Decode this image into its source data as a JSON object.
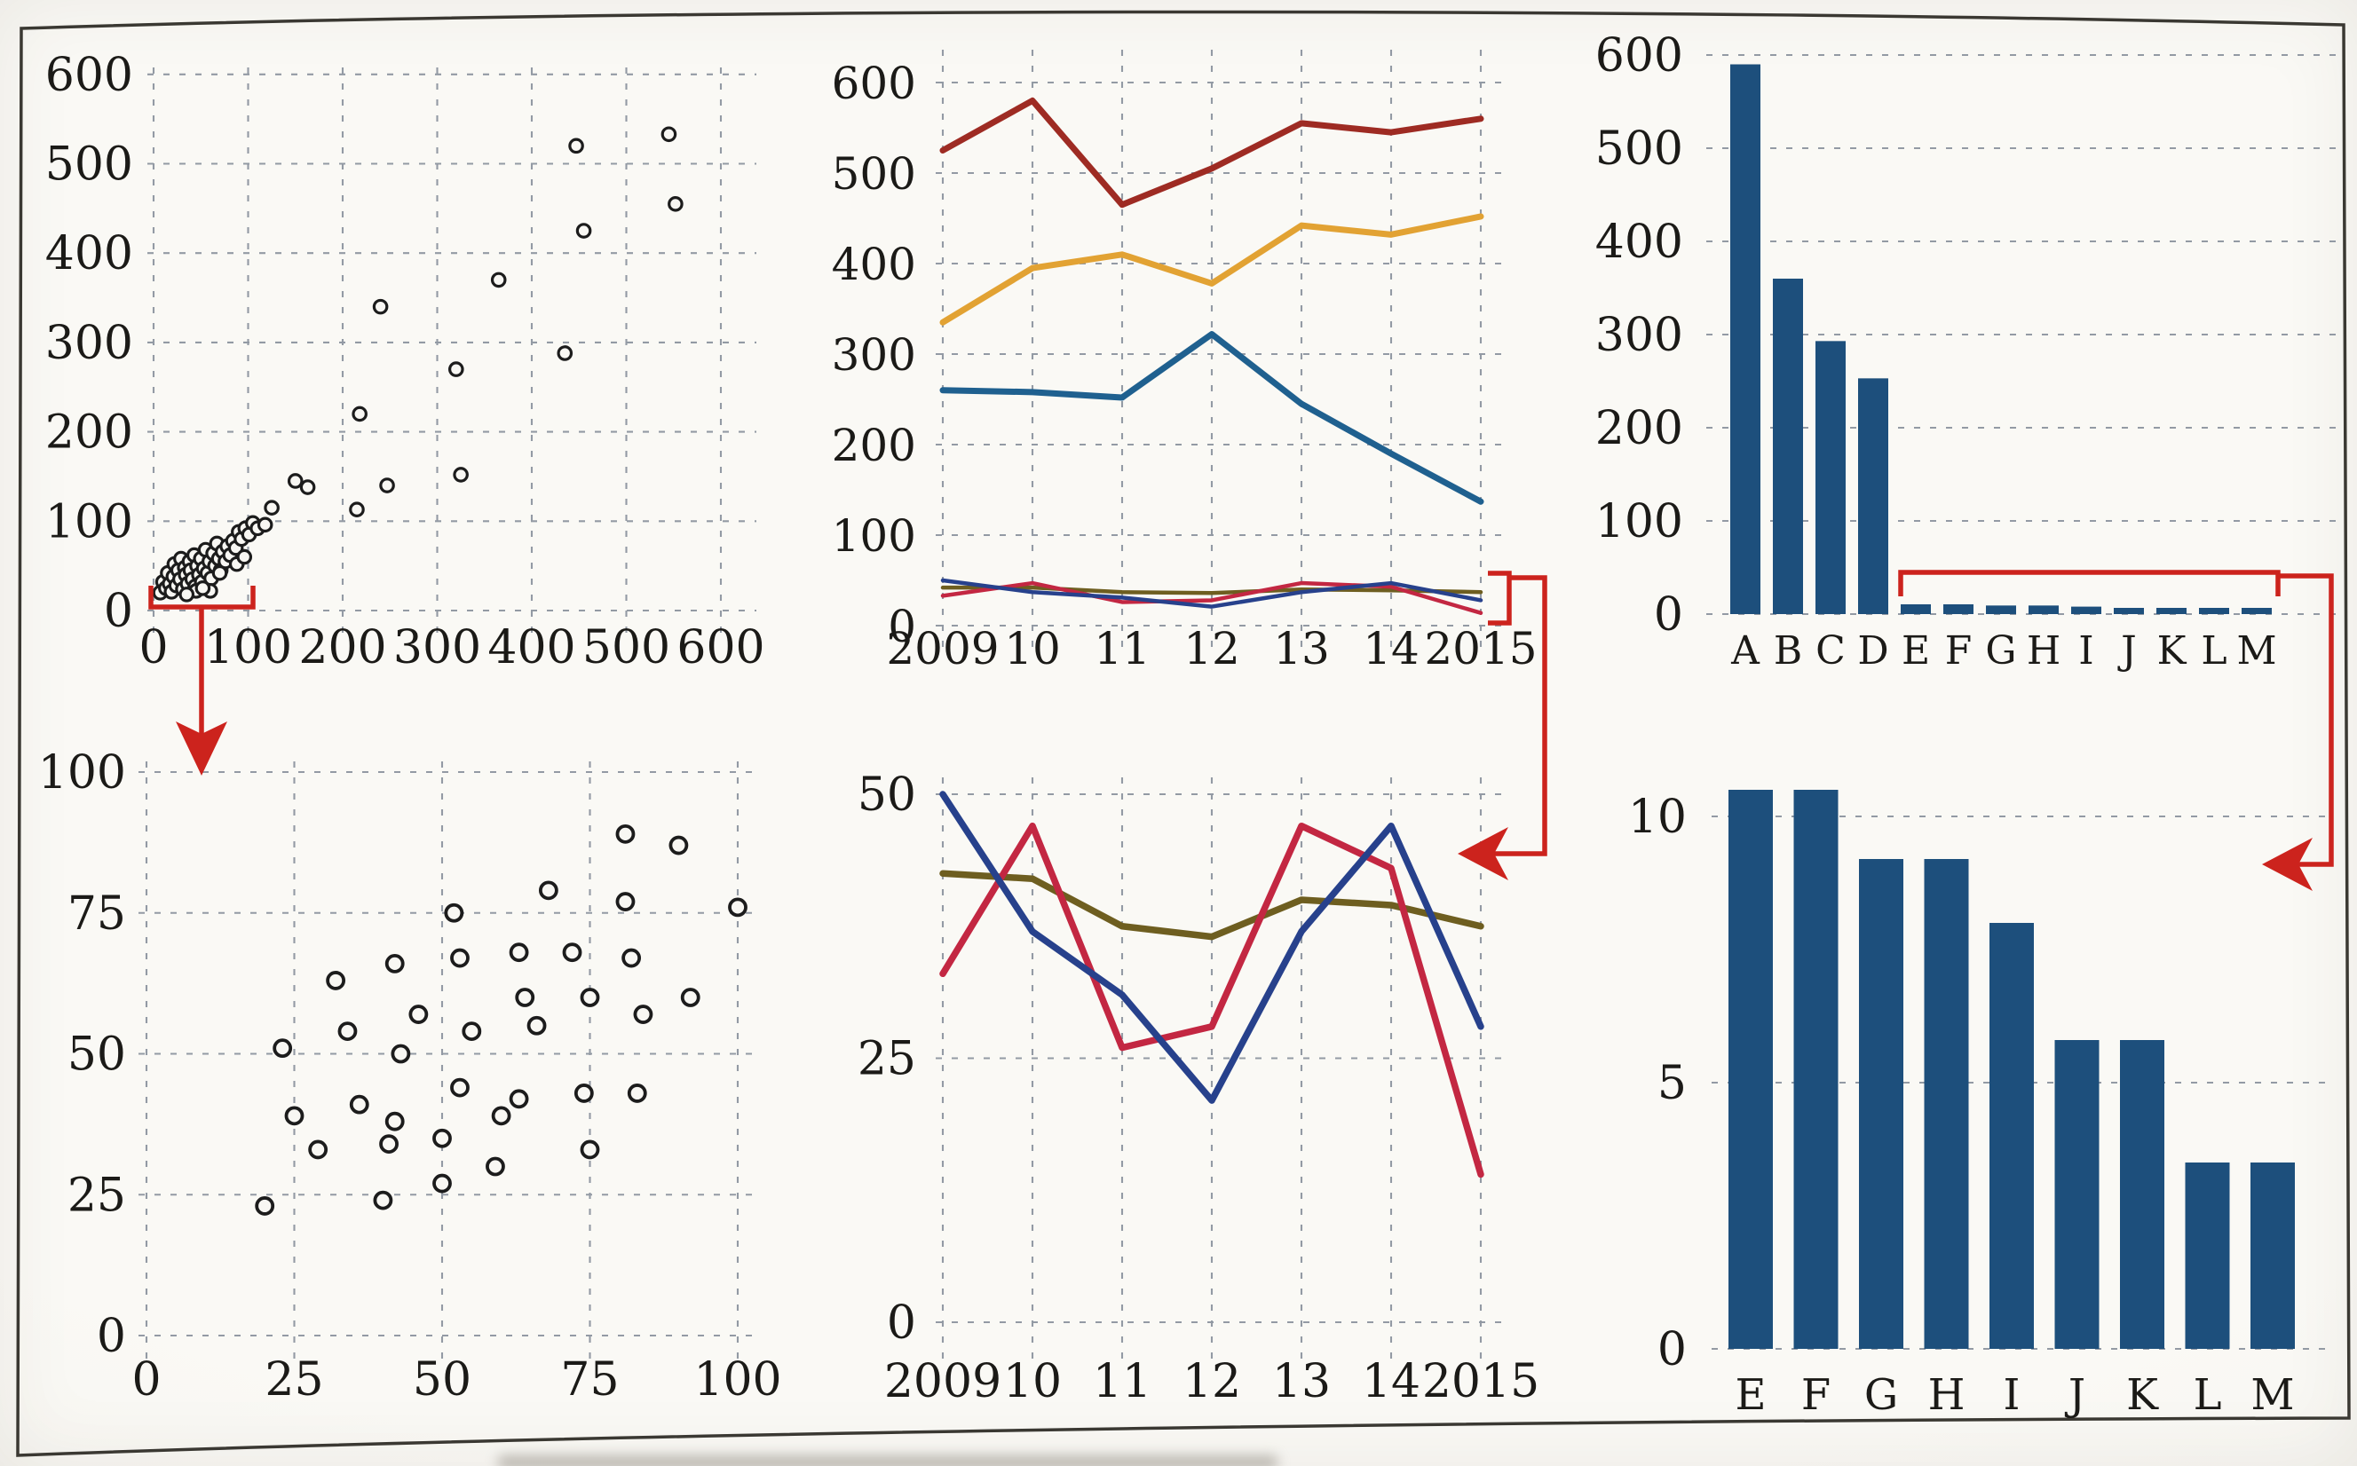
{
  "page": {
    "paper_color": "#f8f7f3",
    "border_color": "#3a3832",
    "gridline_color": "#939aa4",
    "text_color": "#1b1a17",
    "annotation_color": "#cc231d",
    "bar_color": "#1d4f7c",
    "point_color": "#1c1c1c"
  },
  "chart_data": [
    {
      "id": "scatter-full",
      "type": "scatter",
      "position": "top-left",
      "xlim": [
        0,
        600
      ],
      "ylim": [
        0,
        600
      ],
      "xticks": [
        0,
        100,
        200,
        300,
        400,
        500,
        600
      ],
      "xtick_labels": [
        "0",
        "100",
        "200",
        "300",
        "400",
        "500",
        "600"
      ],
      "yticks": [
        0,
        100,
        200,
        300,
        400,
        500,
        600
      ],
      "ytick_labels": [
        "0",
        "100",
        "200",
        "300",
        "400",
        "500",
        "600"
      ],
      "grid": "both",
      "points": [
        [
          7,
          20
        ],
        [
          10,
          32
        ],
        [
          13,
          25
        ],
        [
          15,
          42
        ],
        [
          17,
          30
        ],
        [
          19,
          21
        ],
        [
          21,
          38
        ],
        [
          22,
          52
        ],
        [
          24,
          28
        ],
        [
          26,
          45
        ],
        [
          28,
          35
        ],
        [
          29,
          58
        ],
        [
          31,
          24
        ],
        [
          33,
          48
        ],
        [
          34,
          40
        ],
        [
          36,
          30
        ],
        [
          38,
          55
        ],
        [
          39,
          45
        ],
        [
          41,
          35
        ],
        [
          43,
          62
        ],
        [
          44,
          27
        ],
        [
          46,
          50
        ],
        [
          48,
          40
        ],
        [
          50,
          58
        ],
        [
          51,
          32
        ],
        [
          53,
          47
        ],
        [
          55,
          68
        ],
        [
          57,
          42
        ],
        [
          59,
          55
        ],
        [
          61,
          36
        ],
        [
          63,
          64
        ],
        [
          65,
          50
        ],
        [
          67,
          75
        ],
        [
          69,
          58
        ],
        [
          71,
          45
        ],
        [
          73,
          66
        ],
        [
          76,
          55
        ],
        [
          78,
          72
        ],
        [
          81,
          62
        ],
        [
          84,
          78
        ],
        [
          87,
          70
        ],
        [
          90,
          88
        ],
        [
          60,
          22
        ],
        [
          45,
          22
        ],
        [
          35,
          18
        ],
        [
          52,
          25
        ],
        [
          70,
          42
        ],
        [
          88,
          52
        ],
        [
          96,
          60
        ],
        [
          93,
          80
        ],
        [
          97,
          92
        ],
        [
          101,
          85
        ],
        [
          105,
          98
        ],
        [
          110,
          92
        ],
        [
          118,
          96
        ],
        [
          125,
          115
        ],
        [
          150,
          145
        ],
        [
          163,
          138
        ],
        [
          215,
          113
        ],
        [
          218,
          220
        ],
        [
          240,
          340
        ],
        [
          247,
          140
        ],
        [
          320,
          270
        ],
        [
          325,
          152
        ],
        [
          365,
          370
        ],
        [
          435,
          288
        ],
        [
          447,
          520
        ],
        [
          455,
          425
        ],
        [
          545,
          533
        ],
        [
          552,
          455
        ]
      ]
    },
    {
      "id": "scatter-zoom",
      "type": "scatter",
      "position": "bottom-left",
      "xlim": [
        0,
        100
      ],
      "ylim": [
        0,
        100
      ],
      "xticks": [
        0,
        25,
        50,
        75,
        100
      ],
      "xtick_labels": [
        "0",
        "25",
        "50",
        "75",
        "100"
      ],
      "yticks": [
        0,
        25,
        50,
        75,
        100
      ],
      "ytick_labels": [
        "0",
        "25",
        "50",
        "75",
        "100"
      ],
      "grid": "both",
      "points": [
        [
          20,
          23
        ],
        [
          23,
          51
        ],
        [
          25,
          39
        ],
        [
          29,
          33
        ],
        [
          32,
          63
        ],
        [
          34,
          54
        ],
        [
          36,
          41
        ],
        [
          40,
          24
        ],
        [
          41,
          34
        ],
        [
          42,
          38
        ],
        [
          43,
          50
        ],
        [
          42,
          66
        ],
        [
          46,
          57
        ],
        [
          50,
          35
        ],
        [
          50,
          27
        ],
        [
          52,
          75
        ],
        [
          53,
          67
        ],
        [
          53,
          44
        ],
        [
          55,
          54
        ],
        [
          59,
          30
        ],
        [
          60,
          39
        ],
        [
          63,
          68
        ],
        [
          63,
          42
        ],
        [
          64,
          60
        ],
        [
          66,
          55
        ],
        [
          68,
          79
        ],
        [
          72,
          68
        ],
        [
          74,
          43
        ],
        [
          75,
          60
        ],
        [
          75,
          33
        ],
        [
          81,
          89
        ],
        [
          81,
          77
        ],
        [
          82,
          67
        ],
        [
          83,
          43
        ],
        [
          84,
          57
        ],
        [
          90,
          87
        ],
        [
          92,
          60
        ],
        [
          100,
          76
        ]
      ]
    },
    {
      "id": "lines-full",
      "type": "line",
      "position": "top-middle",
      "x_labels": [
        "2009",
        "10",
        "11",
        "12",
        "13",
        "14",
        "2015"
      ],
      "ylim": [
        0,
        600
      ],
      "yticks": [
        0,
        100,
        200,
        300,
        400,
        500,
        600
      ],
      "ytick_labels": [
        "0",
        "100",
        "200",
        "300",
        "400",
        "500",
        "600"
      ],
      "grid": "both",
      "series": [
        {
          "name": "series-dark-red",
          "color": "#9e2b23",
          "values": [
            525,
            580,
            465,
            505,
            555,
            545,
            560
          ]
        },
        {
          "name": "series-orange",
          "color": "#e2a233",
          "values": [
            335,
            395,
            410,
            378,
            442,
            432,
            452
          ]
        },
        {
          "name": "series-steel-blue",
          "color": "#1f608f",
          "values": [
            260,
            258,
            252,
            322,
            245,
            190,
            137
          ]
        },
        {
          "name": "series-olive",
          "color": "#6e5e20",
          "values": [
            42,
            42,
            37,
            36,
            40,
            39,
            37
          ]
        },
        {
          "name": "series-crimson",
          "color": "#c32742",
          "values": [
            33,
            47,
            26,
            28,
            47,
            43,
            14
          ]
        },
        {
          "name": "series-navy",
          "color": "#27418c",
          "values": [
            50,
            37,
            31,
            21,
            37,
            47,
            28
          ]
        }
      ]
    },
    {
      "id": "lines-zoom",
      "type": "line",
      "position": "bottom-middle",
      "x_labels": [
        "2009",
        "10",
        "11",
        "12",
        "13",
        "14",
        "2015"
      ],
      "ylim": [
        0,
        50
      ],
      "yticks": [
        0,
        25,
        50
      ],
      "ytick_labels": [
        "0",
        "25",
        "50"
      ],
      "grid": "both",
      "series": [
        {
          "name": "series-olive",
          "color": "#6e5e20",
          "values": [
            42.5,
            42,
            37.5,
            36.5,
            40,
            39.5,
            37.5
          ]
        },
        {
          "name": "series-crimson",
          "color": "#c32742",
          "values": [
            33,
            47,
            26,
            28,
            47,
            43,
            14
          ]
        },
        {
          "name": "series-navy",
          "color": "#27418c",
          "values": [
            50,
            37,
            31,
            21,
            37,
            47,
            28
          ]
        }
      ]
    },
    {
      "id": "bars-full",
      "type": "bar",
      "position": "top-right",
      "categories": [
        "A",
        "B",
        "C",
        "D",
        "E",
        "F",
        "G",
        "H",
        "I",
        "J",
        "K",
        "L",
        "M"
      ],
      "values": [
        590,
        360,
        293,
        253,
        10.5,
        10.5,
        9.2,
        9.2,
        8,
        5.8,
        5.8,
        3.5,
        3.5
      ],
      "ylim": [
        0,
        600
      ],
      "yticks": [
        0,
        100,
        200,
        300,
        400,
        500,
        600
      ],
      "ytick_labels": [
        "0",
        "100",
        "200",
        "300",
        "400",
        "500",
        "600"
      ],
      "grid": "horizontal"
    },
    {
      "id": "bars-zoom",
      "type": "bar",
      "position": "bottom-right",
      "categories": [
        "E",
        "F",
        "G",
        "H",
        "I",
        "J",
        "K",
        "L",
        "M"
      ],
      "values": [
        10.5,
        10.5,
        9.2,
        9.2,
        8,
        5.8,
        5.8,
        3.5,
        3.5
      ],
      "ylim": [
        0,
        10.5
      ],
      "yticks": [
        0,
        5,
        10
      ],
      "ytick_labels": [
        "0",
        "5",
        "10"
      ],
      "grid": "horizontal"
    }
  ],
  "annotations": [
    {
      "name": "zoom-bracket-left",
      "style": "bracket-with-down-arrow",
      "links": "scatter-full 0-100 cluster to scatter-zoom",
      "color": "#cc231d"
    },
    {
      "name": "zoom-bracket-middle",
      "style": "bracket-with-left-arrow",
      "links": "lines-full bottom cluster to lines-zoom",
      "color": "#cc231d"
    },
    {
      "name": "zoom-bracket-right",
      "style": "bracket-with-left-arrow",
      "links": "bars-full E-M bars to bars-zoom",
      "color": "#cc231d"
    }
  ]
}
